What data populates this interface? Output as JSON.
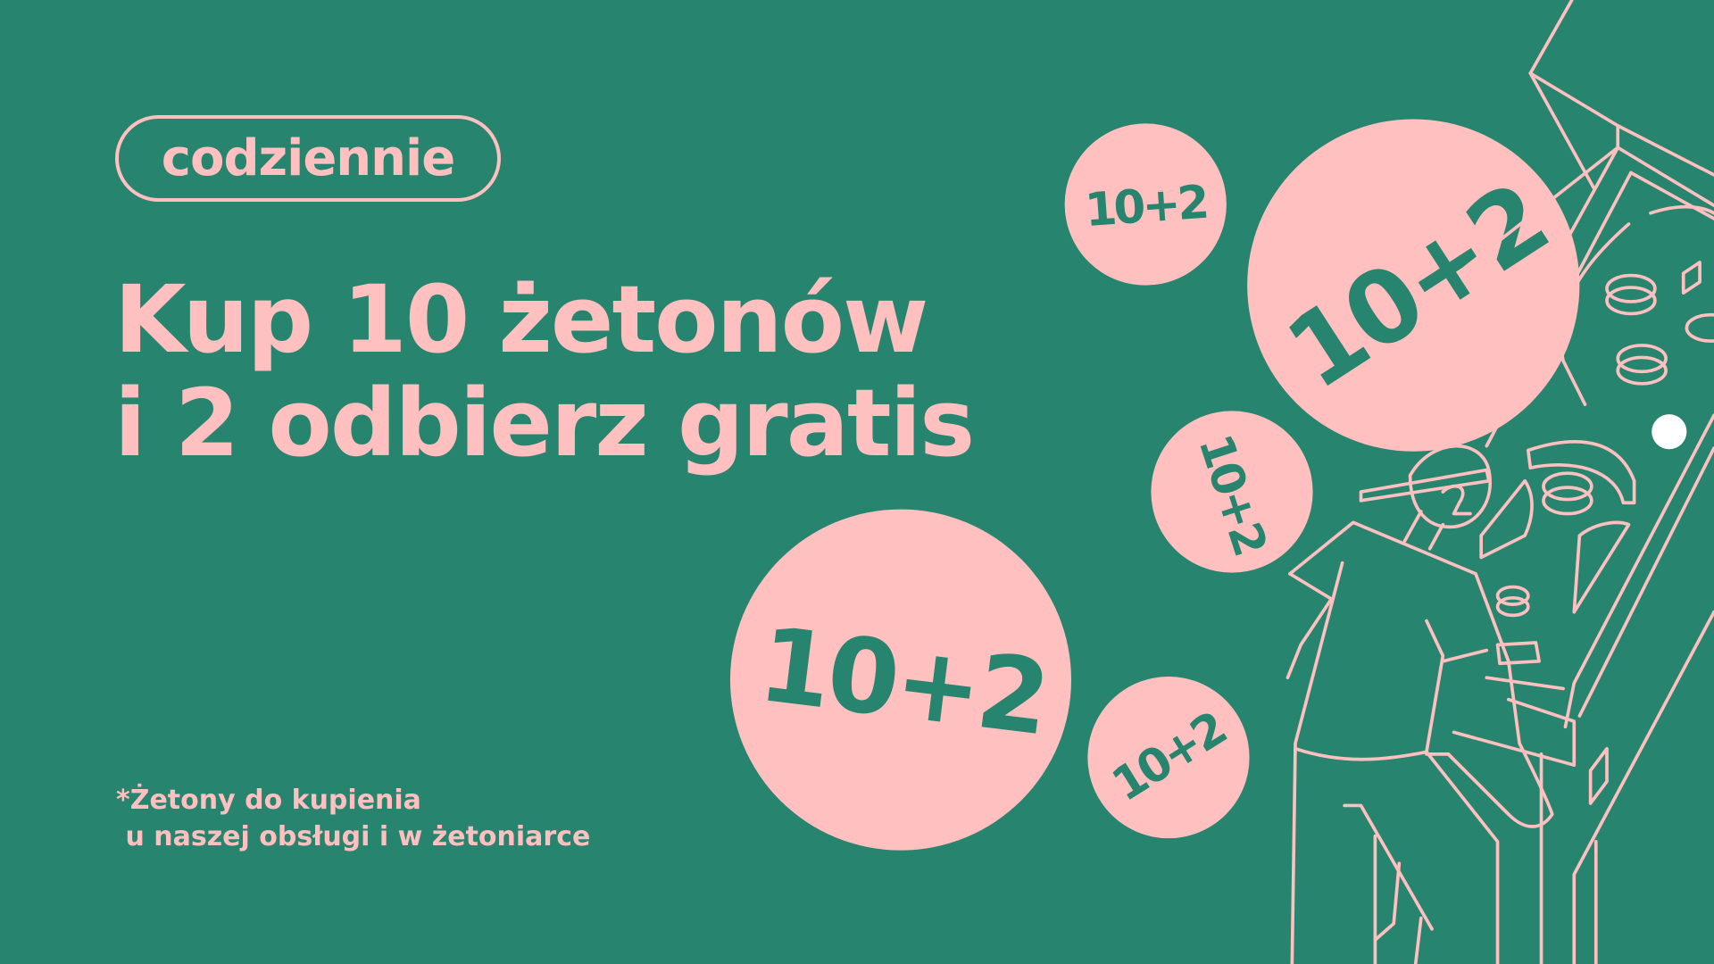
{
  "badge": {
    "label": "codziennie"
  },
  "headline": {
    "line1": "Kup 10 żetonów",
    "line2": "i 2 odbierz gratis"
  },
  "footnote": {
    "line1": "*Żetony do kupienia",
    "line2": " u naszej obsługi i w żetoniarce"
  },
  "coins": [
    {
      "label": "10+2"
    },
    {
      "label": "10+2"
    },
    {
      "label": "10+2"
    },
    {
      "label": "10+2"
    },
    {
      "label": "10+2"
    }
  ],
  "colors": {
    "background": "#27846e",
    "accent": "#ffc0bf"
  }
}
